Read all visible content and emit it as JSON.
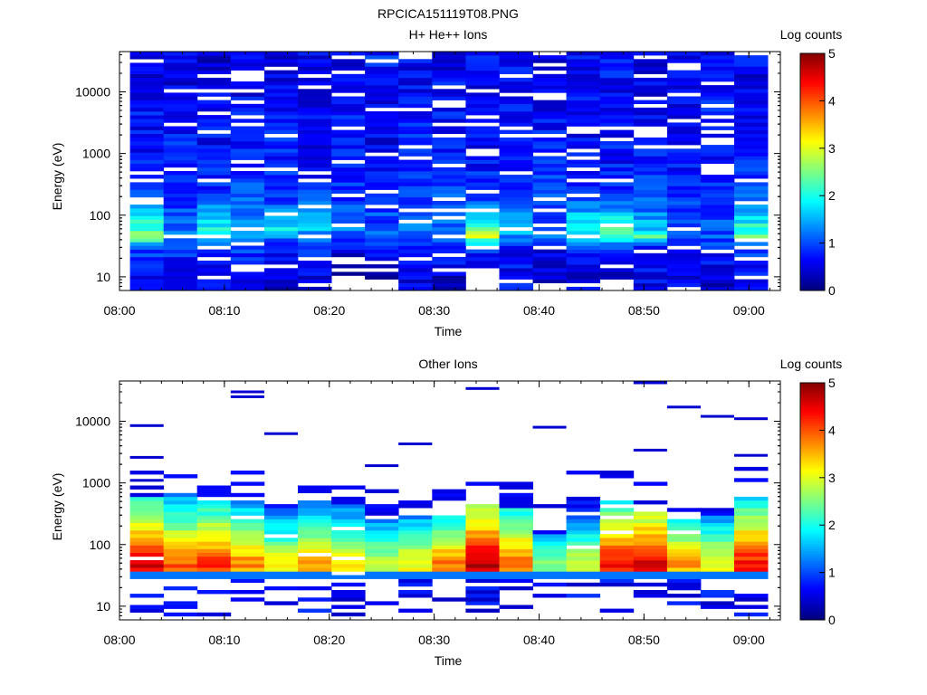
{
  "page": {
    "title": "RPCICA151119T08.PNG"
  },
  "colors": {
    "colormap": [
      "#00007f",
      "#0000ff",
      "#0080ff",
      "#00ffff",
      "#80ff80",
      "#ffff00",
      "#ff8000",
      "#ff0000",
      "#7f0000"
    ],
    "background": "#ffffff",
    "axes": "#000000"
  },
  "chart_data": [
    {
      "type": "heatmap",
      "title": "H+ He++ Ions",
      "xlabel": "Time",
      "ylabel": "Energy (eV)",
      "y_scale": "log",
      "xticks": [
        "08:00",
        "08:10",
        "08:20",
        "08:30",
        "08:40",
        "08:50",
        "09:00"
      ],
      "yticks": [
        "10",
        "100",
        "1000",
        "10000"
      ],
      "colorbar": {
        "label": "Log counts",
        "ticks": [
          "0",
          "1",
          "2",
          "3",
          "4",
          "5"
        ],
        "range": [
          0,
          5
        ]
      },
      "time_range": [
        "08:00",
        "09:03"
      ],
      "energy_range_ev": [
        6,
        45000
      ],
      "columns": 19,
      "column_start": "08:01",
      "column_width_min": 3.2,
      "row_counts_by_energy_ev": [
        {
          "ev": 40000,
          "row": [
            0.5,
            0.6,
            0.4,
            0.7,
            0.5,
            0.6,
            0.5,
            0.8,
            0.6,
            0.5,
            0.7,
            0.6,
            0.5,
            0.6,
            0.7,
            0.5,
            0.6,
            0.5,
            0.6
          ]
        },
        {
          "ev": 10000,
          "row": [
            0.6,
            0.5,
            0.7,
            0.6,
            0.5,
            0.6,
            0.7,
            0.5,
            0.6,
            0.7,
            0.5,
            0.6,
            0.5,
            0.7,
            0.6,
            0.5,
            0.6,
            0.7,
            0.5
          ]
        },
        {
          "ev": 1000,
          "row": [
            0.7,
            0.8,
            0.6,
            0.7,
            0.8,
            0.6,
            0.7,
            0.6,
            0.8,
            0.7,
            0.6,
            0.7,
            0.8,
            0.6,
            0.7,
            0.8,
            0.6,
            0.7,
            0.8
          ]
        },
        {
          "ev": 200,
          "row": [
            1.0,
            0.8,
            0.9,
            1.0,
            0.8,
            0.9,
            0.8,
            0.9,
            0.8,
            1.0,
            0.9,
            0.8,
            1.0,
            0.9,
            0.8,
            1.0,
            0.9,
            0.8,
            1.0
          ]
        },
        {
          "ev": 60,
          "row": [
            2.2,
            1.2,
            2.0,
            1.4,
            1.8,
            1.6,
            1.2,
            1.0,
            1.3,
            1.2,
            2.3,
            1.5,
            1.0,
            2.0,
            2.4,
            1.6,
            1.1,
            1.0,
            2.1
          ]
        },
        {
          "ev": 45,
          "row": [
            2.6,
            1.4,
            1.6,
            1.5,
            1.3,
            1.2,
            1.1,
            1.0,
            1.2,
            1.4,
            2.8,
            1.3,
            1.1,
            1.6,
            2.2,
            2.4,
            1.2,
            1.1,
            2.3
          ]
        },
        {
          "ev": 30,
          "row": [
            1.0,
            0.9,
            0.8,
            0.9,
            0.7,
            0.8,
            0.6,
            0.7,
            0.9,
            0.8,
            0.9,
            0.7,
            0.6,
            0.8,
            0.9,
            0.8,
            0.7,
            0.8,
            0.9
          ]
        },
        {
          "ev": 10,
          "row": [
            0.6,
            0.4,
            0.6,
            0.7,
            0.4,
            0.5,
            0.0,
            0.0,
            0.5,
            0.4,
            0.0,
            0.6,
            0.4,
            0.5,
            0.0,
            0.6,
            0.5,
            0.4,
            0.6
          ]
        }
      ]
    },
    {
      "type": "heatmap",
      "title": "Other Ions",
      "xlabel": "Time",
      "ylabel": "Energy (eV)",
      "y_scale": "log",
      "xticks": [
        "08:00",
        "08:10",
        "08:20",
        "08:30",
        "08:40",
        "08:50",
        "09:00"
      ],
      "yticks": [
        "10",
        "100",
        "1000",
        "10000"
      ],
      "colorbar": {
        "label": "Log counts",
        "ticks": [
          "0",
          "1",
          "2",
          "3",
          "4",
          "5"
        ],
        "range": [
          0,
          5
        ]
      },
      "time_range": [
        "08:00",
        "09:03"
      ],
      "energy_range_ev": [
        6,
        45000
      ],
      "columns": 19,
      "column_start": "08:01",
      "column_width_min": 3.2,
      "column_profiles": [
        {
          "peak": 4.6,
          "top_ev": 600
        },
        {
          "peak": 4.0,
          "top_ev": 700
        },
        {
          "peak": 4.2,
          "top_ev": 500
        },
        {
          "peak": 3.8,
          "top_ev": 500
        },
        {
          "peak": 3.2,
          "top_ev": 400
        },
        {
          "peak": 3.6,
          "top_ev": 500
        },
        {
          "peak": 3.4,
          "top_ev": 450
        },
        {
          "peak": 3.0,
          "top_ev": 250
        },
        {
          "peak": 3.2,
          "top_ev": 300
        },
        {
          "peak": 3.8,
          "top_ev": 300
        },
        {
          "peak": 4.8,
          "top_ev": 450
        },
        {
          "peak": 4.0,
          "top_ev": 400
        },
        {
          "peak": 2.6,
          "top_ev": 150
        },
        {
          "peak": 3.0,
          "top_ev": 600
        },
        {
          "peak": 4.4,
          "top_ev": 500
        },
        {
          "peak": 4.6,
          "top_ev": 350
        },
        {
          "peak": 3.6,
          "top_ev": 250
        },
        {
          "peak": 3.2,
          "top_ev": 300
        },
        {
          "peak": 4.4,
          "top_ev": 600
        }
      ],
      "sparse_high_energy_ev": [
        {
          "col": 0,
          "ev": 8500
        },
        {
          "col": 0,
          "ev": 2600
        },
        {
          "col": 0,
          "ev": 1100
        },
        {
          "col": 3,
          "ev": 30000
        },
        {
          "col": 3,
          "ev": 25000
        },
        {
          "col": 4,
          "ev": 6300
        },
        {
          "col": 7,
          "ev": 1900
        },
        {
          "col": 8,
          "ev": 4300
        },
        {
          "col": 10,
          "ev": 34000
        },
        {
          "col": 12,
          "ev": 8000
        },
        {
          "col": 15,
          "ev": 42000
        },
        {
          "col": 15,
          "ev": 3400
        },
        {
          "col": 16,
          "ev": 17000
        },
        {
          "col": 17,
          "ev": 12000
        },
        {
          "col": 18,
          "ev": 11000
        },
        {
          "col": 18,
          "ev": 2800
        }
      ]
    }
  ]
}
